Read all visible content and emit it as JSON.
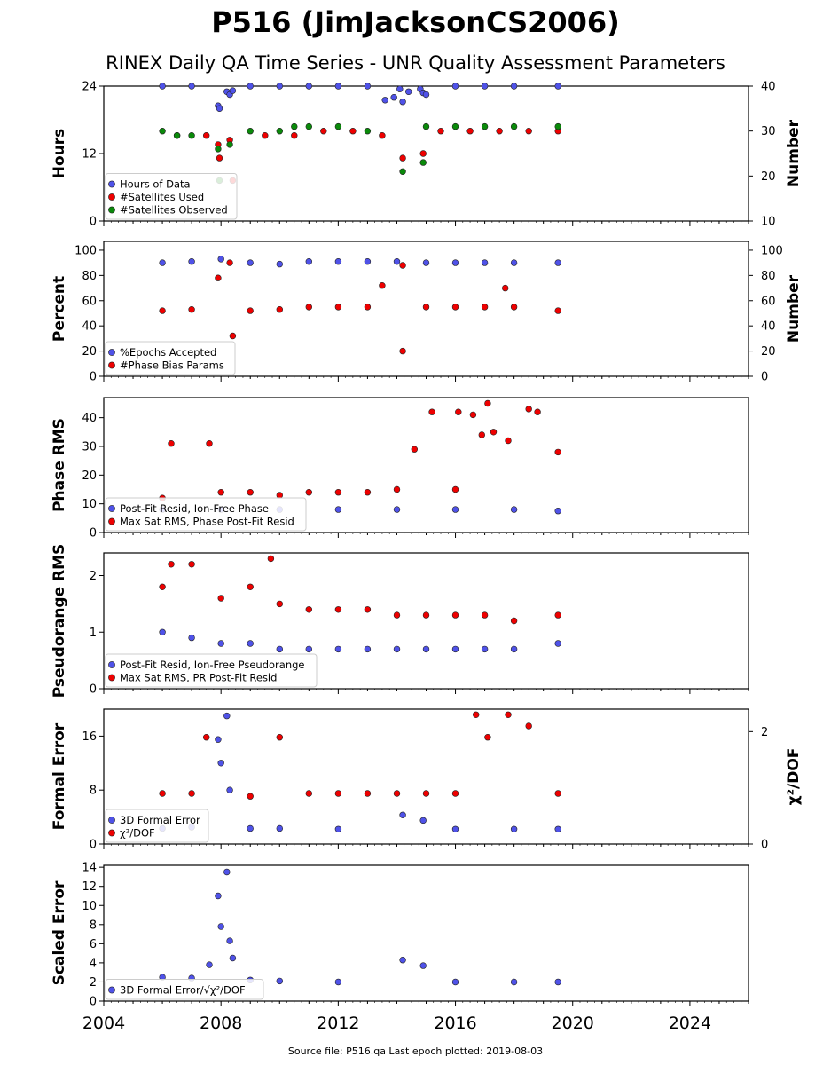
{
  "header": {
    "title": "P516 (JimJacksonCS2006)",
    "subtitle": "RINEX Daily QA Time Series - UNR Quality Assessment Parameters"
  },
  "footer": {
    "source": "Source file: P516.qa Last epoch plotted: 2019-08-03"
  },
  "colors": {
    "blue": "#4f52e8",
    "red": "#ee0000",
    "green": "#0a8a0a"
  },
  "chart_data": [
    {
      "type": "scatter",
      "ylabel": "Hours",
      "ylabel_right": "Number",
      "xlim": [
        2004,
        2026
      ],
      "ylim": [
        0,
        24
      ],
      "yticks": [
        "0",
        "12",
        "24"
      ],
      "ylim_right": [
        10,
        40
      ],
      "yticks_right": [
        "10",
        "20",
        "30",
        "40"
      ],
      "legend": [
        "Hours of Data",
        "#Satellites Used",
        "#Satellites Observed"
      ],
      "series": [
        {
          "name": "Hours of Data",
          "axis": "left",
          "color": "blue",
          "x": [
            2006.0,
            2007.0,
            2007.9,
            2007.95,
            2008.2,
            2008.3,
            2008.4,
            2009.0,
            2010.0,
            2011.0,
            2012.0,
            2013.0,
            2013.6,
            2013.9,
            2014.1,
            2014.2,
            2014.4,
            2014.8,
            2014.9,
            2015.0,
            2016.0,
            2017.0,
            2018.0,
            2019.5
          ],
          "y": [
            24,
            24,
            20.5,
            20.0,
            23.0,
            22.5,
            23.2,
            24,
            24,
            24,
            24,
            24,
            21.5,
            22.0,
            23.5,
            21.2,
            23.0,
            23.5,
            22.8,
            22.5,
            24,
            24,
            24,
            24
          ]
        },
        {
          "name": "#Satellites Used",
          "axis": "right",
          "color": "red",
          "x": [
            2006.5,
            2007.5,
            2007.9,
            2007.95,
            2008.3,
            2008.4,
            2009.5,
            2010.5,
            2011.5,
            2012.5,
            2013.5,
            2014.2,
            2014.9,
            2015.5,
            2016.5,
            2017.5,
            2018.5,
            2019.5
          ],
          "y": [
            29,
            29,
            27,
            24,
            28,
            19,
            29,
            29,
            30,
            30,
            29,
            24,
            25,
            30,
            30,
            30,
            30,
            30
          ]
        },
        {
          "name": "#Satellites Observed",
          "axis": "right",
          "color": "green",
          "x": [
            2006.0,
            2006.5,
            2007.0,
            2007.9,
            2007.95,
            2008.3,
            2009.0,
            2010.0,
            2010.5,
            2011.0,
            2012.0,
            2013.0,
            2014.2,
            2014.9,
            2015.0,
            2016.0,
            2017.0,
            2018.0,
            2019.5
          ],
          "y": [
            30,
            29,
            29,
            26,
            19,
            27,
            30,
            30,
            31,
            31,
            31,
            30,
            21,
            23,
            31,
            31,
            31,
            31,
            31
          ]
        }
      ]
    },
    {
      "type": "scatter",
      "ylabel": "Percent",
      "ylabel_right": "Number",
      "xlim": [
        2004,
        2026
      ],
      "ylim": [
        0,
        107
      ],
      "yticks": [
        "0",
        "20",
        "40",
        "60",
        "80",
        "100"
      ],
      "ylim_right": [
        0,
        107
      ],
      "yticks_right": [
        "0",
        "20",
        "40",
        "60",
        "80",
        "100"
      ],
      "legend": [
        "%Epochs Accepted",
        "#Phase Bias Params"
      ],
      "series": [
        {
          "name": "%Epochs Accepted",
          "axis": "left",
          "color": "blue",
          "x": [
            2006.0,
            2007.0,
            2008.0,
            2009.0,
            2010.0,
            2011.0,
            2012.0,
            2013.0,
            2014.0,
            2015.0,
            2016.0,
            2017.0,
            2018.0,
            2019.5
          ],
          "y": [
            90,
            91,
            93,
            90,
            89,
            91,
            91,
            91,
            91,
            90,
            90,
            90,
            90,
            90
          ]
        },
        {
          "name": "#Phase Bias Params",
          "axis": "right",
          "color": "red",
          "x": [
            2006.0,
            2007.0,
            2007.9,
            2008.3,
            2008.4,
            2009.0,
            2010.0,
            2011.0,
            2012.0,
            2013.0,
            2013.5,
            2014.2,
            2014.2,
            2015.0,
            2016.0,
            2017.0,
            2017.7,
            2018.0,
            2019.5
          ],
          "y": [
            52,
            53,
            78,
            90,
            32,
            52,
            53,
            55,
            55,
            55,
            72,
            88,
            20,
            55,
            55,
            55,
            70,
            55,
            52
          ]
        }
      ]
    },
    {
      "type": "scatter",
      "ylabel": "Phase RMS",
      "xlim": [
        2004,
        2026
      ],
      "ylim": [
        0,
        47
      ],
      "yticks": [
        "0",
        "10",
        "20",
        "30",
        "40"
      ],
      "legend": [
        "Post-Fit Resid, Ion-Free Phase",
        "Max Sat RMS, Phase Post-Fit Resid"
      ],
      "series": [
        {
          "name": "Post-Fit Resid, Ion-Free Phase",
          "color": "blue",
          "x": [
            2006.0,
            2008.0,
            2010.0,
            2012.0,
            2014.0,
            2016.0,
            2018.0,
            2019.5
          ],
          "y": [
            8,
            8,
            8,
            8,
            8,
            8,
            8,
            7.5
          ]
        },
        {
          "name": "Max Sat RMS, Phase Post-Fit Resid",
          "color": "red",
          "x": [
            2006.0,
            2006.3,
            2007.6,
            2008.0,
            2009.0,
            2010.0,
            2011.0,
            2012.0,
            2013.0,
            2014.0,
            2014.6,
            2015.2,
            2016.0,
            2016.1,
            2016.6,
            2016.9,
            2017.1,
            2017.3,
            2017.8,
            2018.5,
            2018.8,
            2019.5
          ],
          "y": [
            12,
            31,
            31,
            14,
            14,
            13,
            14,
            14,
            14,
            15,
            29,
            42,
            15,
            42,
            41,
            34,
            45,
            35,
            32,
            43,
            42,
            28
          ]
        }
      ]
    },
    {
      "type": "scatter",
      "ylabel": "Pseudorange RMS",
      "xlim": [
        2004,
        2026
      ],
      "ylim": [
        0,
        2.4
      ],
      "yticks": [
        "0",
        "1",
        "2"
      ],
      "legend": [
        "Post-Fit Resid, Ion-Free Pseudorange",
        "Max Sat RMS, PR Post-Fit Resid"
      ],
      "series": [
        {
          "name": "Post-Fit Resid, Ion-Free Pseudorange",
          "color": "blue",
          "x": [
            2006.0,
            2007.0,
            2008.0,
            2009.0,
            2010.0,
            2011.0,
            2012.0,
            2013.0,
            2014.0,
            2015.0,
            2016.0,
            2017.0,
            2018.0,
            2019.5
          ],
          "y": [
            1.0,
            0.9,
            0.8,
            0.8,
            0.7,
            0.7,
            0.7,
            0.7,
            0.7,
            0.7,
            0.7,
            0.7,
            0.7,
            0.8
          ]
        },
        {
          "name": "Max Sat RMS, PR Post-Fit Resid",
          "color": "red",
          "x": [
            2006.0,
            2006.3,
            2007.0,
            2008.0,
            2009.0,
            2009.7,
            2010.0,
            2011.0,
            2012.0,
            2013.0,
            2014.0,
            2015.0,
            2016.0,
            2017.0,
            2018.0,
            2019.5
          ],
          "y": [
            1.8,
            2.2,
            2.2,
            1.6,
            1.8,
            2.3,
            1.5,
            1.4,
            1.4,
            1.4,
            1.3,
            1.3,
            1.3,
            1.3,
            1.2,
            1.3
          ]
        }
      ]
    },
    {
      "type": "scatter",
      "ylabel": "Formal Error",
      "ylabel_right": "χ²/DOF",
      "xlim": [
        2004,
        2026
      ],
      "ylim": [
        0,
        20
      ],
      "yticks": [
        "0",
        "8",
        "16"
      ],
      "ylim_right": [
        0,
        2.4
      ],
      "yticks_right": [
        "0",
        "2"
      ],
      "legend": [
        "3D Formal Error",
        "χ²/DOF"
      ],
      "series": [
        {
          "name": "3D Formal Error",
          "color": "blue",
          "x": [
            2006.0,
            2007.0,
            2007.9,
            2008.0,
            2008.2,
            2008.3,
            2009.0,
            2010.0,
            2012.0,
            2014.2,
            2014.9,
            2016.0,
            2018.0,
            2019.5
          ],
          "y": [
            2.3,
            2.5,
            15.5,
            12.0,
            19.0,
            8.0,
            2.3,
            2.3,
            2.2,
            4.3,
            3.5,
            2.2,
            2.2,
            2.2
          ]
        },
        {
          "name": "χ²/DOF",
          "axis": "right",
          "color": "red",
          "x": [
            2006.0,
            2007.0,
            2007.5,
            2009.0,
            2010.0,
            2011.0,
            2012.0,
            2013.0,
            2014.0,
            2015.0,
            2016.0,
            2016.7,
            2017.1,
            2017.8,
            2018.5,
            2019.5
          ],
          "y": [
            0.9,
            0.9,
            1.9,
            0.85,
            1.9,
            0.9,
            0.9,
            0.9,
            0.9,
            0.9,
            0.9,
            2.3,
            1.9,
            2.3,
            2.1,
            0.9
          ]
        }
      ]
    },
    {
      "type": "scatter",
      "ylabel": "Scaled Error",
      "xlim": [
        2004,
        2026
      ],
      "ylim": [
        0,
        14.2
      ],
      "yticks": [
        "0",
        "2",
        "4",
        "6",
        "8",
        "10",
        "12",
        "14"
      ],
      "legend": [
        "3D Formal Error/√χ²/DOF"
      ],
      "series": [
        {
          "name": "3D Formal Error/√χ²/DOF",
          "color": "blue",
          "x": [
            2006.0,
            2007.0,
            2007.6,
            2007.9,
            2008.0,
            2008.2,
            2008.3,
            2008.4,
            2009.0,
            2010.0,
            2012.0,
            2014.2,
            2014.9,
            2016.0,
            2018.0,
            2019.5
          ],
          "y": [
            2.5,
            2.4,
            3.8,
            11.0,
            7.8,
            13.5,
            6.3,
            4.5,
            2.2,
            2.1,
            2.0,
            4.3,
            3.7,
            2.0,
            2.0,
            2.0
          ]
        }
      ]
    }
  ],
  "xaxis": {
    "ticks": [
      "2004",
      "2008",
      "2012",
      "2016",
      "2020",
      "2024"
    ]
  }
}
